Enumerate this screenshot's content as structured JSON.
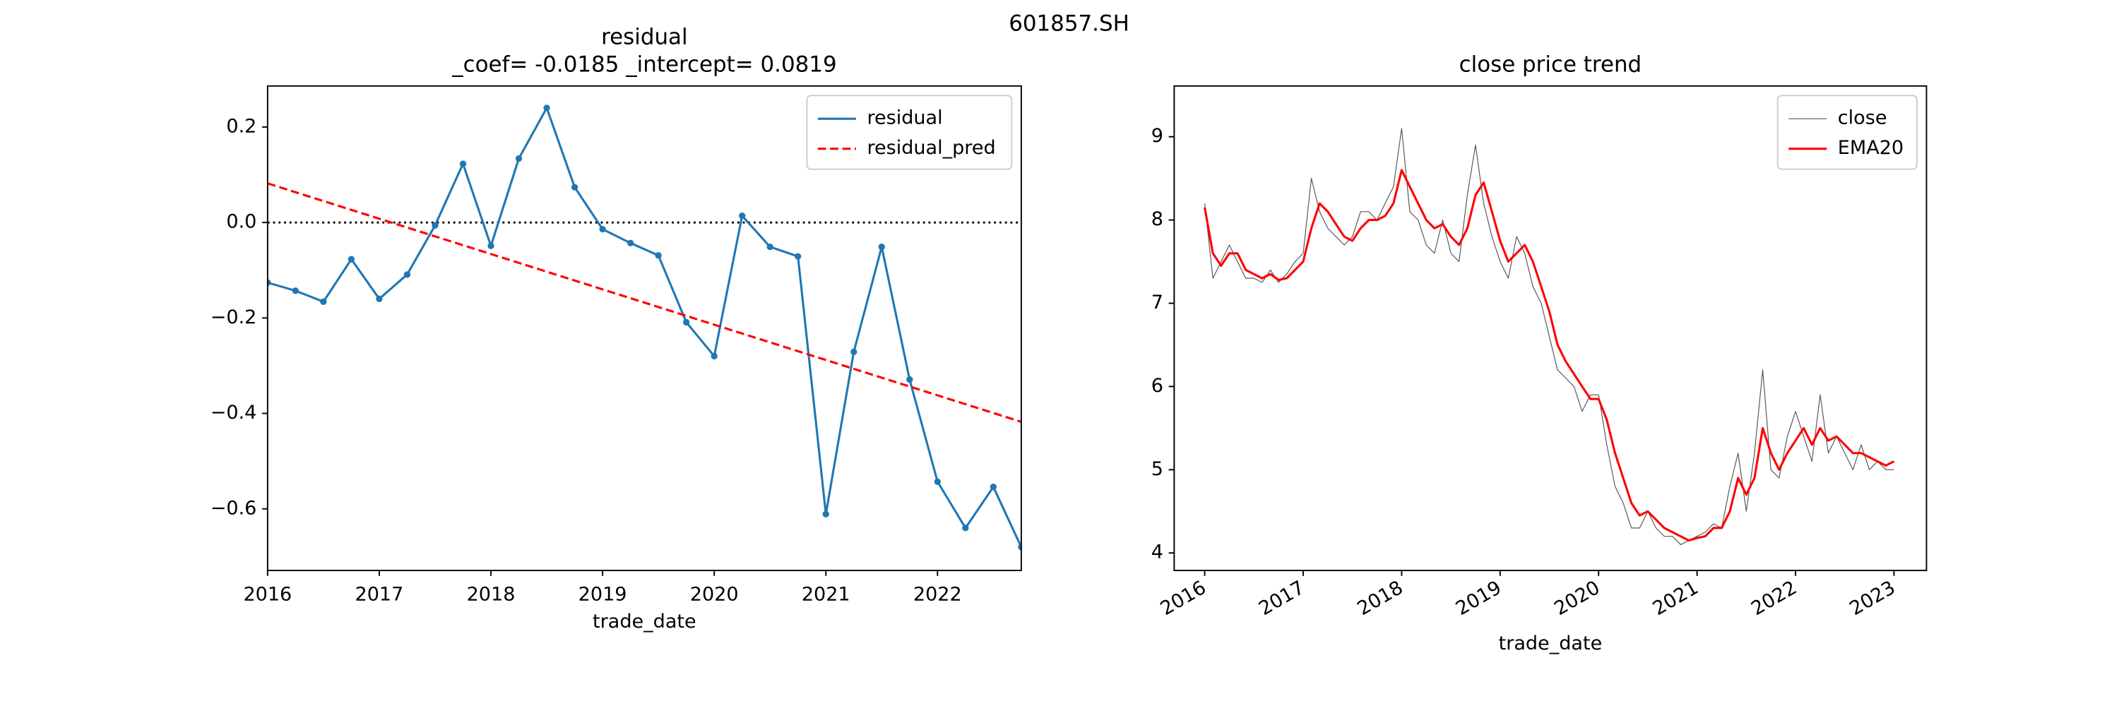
{
  "title": "601857.SH",
  "chart_data": [
    {
      "type": "line",
      "title": [
        "residual",
        "_coef= -0.0185    _intercept= 0.0819"
      ],
      "xlabel": "trade_date",
      "x": [
        2016,
        2016.25,
        2016.5,
        2016.75,
        2017,
        2017.25,
        2017.5,
        2017.75,
        2018,
        2018.25,
        2018.5,
        2018.75,
        2019,
        2019.25,
        2019.5,
        2019.75,
        2020,
        2020.25,
        2020.5,
        2020.75,
        2021,
        2021.25,
        2021.5,
        2021.75,
        2022,
        2022.25,
        2022.5,
        2022.75
      ],
      "series": [
        {
          "name": "residual",
          "color": "#1f77b4",
          "style": "solid",
          "markers": true,
          "values": [
            -0.126,
            -0.143,
            -0.166,
            -0.077,
            -0.16,
            -0.109,
            -0.006,
            0.123,
            -0.049,
            0.134,
            0.24,
            0.074,
            -0.014,
            -0.043,
            -0.069,
            -0.209,
            -0.28,
            0.014,
            -0.051,
            -0.071,
            -0.611,
            -0.271,
            -0.051,
            -0.329,
            -0.543,
            -0.64,
            -0.554,
            -0.68
          ]
        },
        {
          "name": "residual_pred",
          "color": "#ff0000",
          "style": "dashed",
          "markers": false,
          "values": [
            0.0819,
            0.0634,
            0.0449,
            0.0264,
            0.0079,
            -0.0106,
            -0.0291,
            -0.0476,
            -0.0661,
            -0.0846,
            -0.1031,
            -0.1216,
            -0.1401,
            -0.1586,
            -0.1771,
            -0.1956,
            -0.2141,
            -0.2326,
            -0.2511,
            -0.2696,
            -0.2881,
            -0.3066,
            -0.3251,
            -0.3436,
            -0.3621,
            -0.3806,
            -0.3991,
            -0.4176
          ]
        }
      ],
      "hline": 0,
      "xlim": [
        2016,
        2022.75
      ],
      "xticks": [
        2016,
        2017,
        2018,
        2019,
        2020,
        2021,
        2022
      ],
      "ylim": [
        -0.729,
        0.286
      ],
      "yticks": [
        {
          "value": -0.6,
          "label": "−0.6"
        },
        {
          "value": -0.4,
          "label": "−0.4"
        },
        {
          "value": -0.2,
          "label": "−0.2"
        },
        {
          "value": 0,
          "label": "0.0"
        },
        0.2
      ],
      "legend": "upper right",
      "xtick_rotation": 0
    },
    {
      "type": "line",
      "title": [
        "close price trend"
      ],
      "xlabel": "trade_date",
      "x": [
        2016,
        2016.083,
        2016.167,
        2016.25,
        2016.333,
        2016.417,
        2016.5,
        2016.583,
        2016.667,
        2016.75,
        2016.833,
        2016.917,
        2017,
        2017.083,
        2017.167,
        2017.25,
        2017.333,
        2017.417,
        2017.5,
        2017.583,
        2017.667,
        2017.75,
        2017.833,
        2017.917,
        2018,
        2018.083,
        2018.167,
        2018.25,
        2018.333,
        2018.417,
        2018.5,
        2018.583,
        2018.667,
        2018.75,
        2018.833,
        2018.917,
        2019,
        2019.083,
        2019.167,
        2019.25,
        2019.333,
        2019.417,
        2019.5,
        2019.583,
        2019.667,
        2019.75,
        2019.833,
        2019.917,
        2020,
        2020.083,
        2020.167,
        2020.25,
        2020.333,
        2020.417,
        2020.5,
        2020.583,
        2020.667,
        2020.75,
        2020.833,
        2020.917,
        2021,
        2021.083,
        2021.167,
        2021.25,
        2021.333,
        2021.417,
        2021.5,
        2021.583,
        2021.667,
        2021.75,
        2021.833,
        2021.917,
        2022,
        2022.083,
        2022.167,
        2022.25,
        2022.333,
        2022.417,
        2022.5,
        2022.583,
        2022.667,
        2022.75,
        2022.833,
        2022.917,
        2023
      ],
      "series": [
        {
          "name": "close",
          "color": "#555555",
          "style": "thin",
          "markers": false,
          "values": [
            8.2,
            7.3,
            7.5,
            7.7,
            7.5,
            7.3,
            7.3,
            7.25,
            7.4,
            7.25,
            7.35,
            7.5,
            7.6,
            8.5,
            8.1,
            7.9,
            7.8,
            7.7,
            7.8,
            8.1,
            8.1,
            8.0,
            8.2,
            8.4,
            9.1,
            8.1,
            8.0,
            7.7,
            7.6,
            8.0,
            7.6,
            7.5,
            8.3,
            8.9,
            8.2,
            7.8,
            7.5,
            7.3,
            7.8,
            7.6,
            7.2,
            7.0,
            6.6,
            6.2,
            6.1,
            6.0,
            5.7,
            5.9,
            5.9,
            5.3,
            4.8,
            4.6,
            4.3,
            4.3,
            4.5,
            4.3,
            4.2,
            4.2,
            4.1,
            4.15,
            4.2,
            4.25,
            4.35,
            4.3,
            4.8,
            5.2,
            4.5,
            5.2,
            6.2,
            5.0,
            4.9,
            5.4,
            5.7,
            5.4,
            5.1,
            5.9,
            5.2,
            5.4,
            5.2,
            5.0,
            5.3,
            5.0,
            5.1,
            5.0,
            5.0
          ]
        },
        {
          "name": "EMA20",
          "color": "#ff0000",
          "style": "solid",
          "markers": false,
          "values": [
            8.15,
            7.6,
            7.45,
            7.6,
            7.6,
            7.4,
            7.35,
            7.3,
            7.35,
            7.28,
            7.3,
            7.4,
            7.5,
            7.9,
            8.2,
            8.1,
            7.95,
            7.8,
            7.75,
            7.9,
            8.0,
            8.0,
            8.05,
            8.2,
            8.6,
            8.4,
            8.2,
            8.0,
            7.9,
            7.95,
            7.8,
            7.7,
            7.9,
            8.3,
            8.45,
            8.1,
            7.75,
            7.5,
            7.6,
            7.7,
            7.5,
            7.2,
            6.9,
            6.5,
            6.3,
            6.15,
            6.0,
            5.85,
            5.85,
            5.6,
            5.2,
            4.9,
            4.6,
            4.45,
            4.5,
            4.4,
            4.3,
            4.25,
            4.2,
            4.15,
            4.18,
            4.2,
            4.3,
            4.3,
            4.5,
            4.9,
            4.7,
            4.9,
            5.5,
            5.2,
            5.0,
            5.2,
            5.35,
            5.5,
            5.3,
            5.5,
            5.35,
            5.4,
            5.3,
            5.2,
            5.2,
            5.15,
            5.1,
            5.05,
            5.1
          ]
        }
      ],
      "xlim": [
        2015.69,
        2023.33
      ],
      "xticks": [
        2016,
        2017,
        2018,
        2019,
        2020,
        2021,
        2022,
        2023
      ],
      "ylim": [
        3.79,
        9.61
      ],
      "yticks": [
        4,
        5,
        6,
        7,
        8,
        9
      ],
      "legend": "upper right",
      "xtick_rotation": -30
    }
  ]
}
